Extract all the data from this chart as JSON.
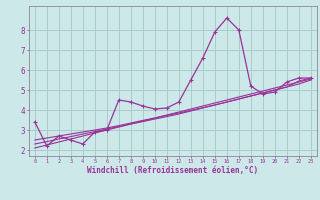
{
  "title": "",
  "xlabel": "Windchill (Refroidissement éolien,°C)",
  "bg_color": "#cce8e8",
  "grid_color": "#aacccc",
  "line_color": "#993399",
  "x_data": [
    0,
    1,
    2,
    3,
    4,
    5,
    6,
    7,
    8,
    9,
    10,
    11,
    12,
    13,
    14,
    15,
    16,
    17,
    18,
    19,
    20,
    21,
    22,
    23
  ],
  "main_y": [
    3.4,
    2.2,
    2.7,
    2.5,
    2.3,
    2.9,
    3.0,
    4.5,
    4.4,
    4.2,
    4.05,
    4.1,
    4.4,
    5.5,
    6.6,
    7.9,
    8.6,
    8.0,
    5.2,
    4.8,
    4.9,
    5.4,
    5.6,
    5.6
  ],
  "line1_y": [
    2.1,
    2.25,
    2.4,
    2.55,
    2.7,
    2.85,
    3.0,
    3.15,
    3.3,
    3.45,
    3.6,
    3.75,
    3.9,
    4.05,
    4.2,
    4.35,
    4.5,
    4.65,
    4.8,
    4.95,
    5.1,
    5.25,
    5.4,
    5.55
  ],
  "line2_y": [
    2.3,
    2.42,
    2.55,
    2.67,
    2.8,
    2.92,
    3.05,
    3.17,
    3.3,
    3.42,
    3.55,
    3.67,
    3.8,
    3.95,
    4.1,
    4.25,
    4.4,
    4.55,
    4.7,
    4.85,
    5.0,
    5.15,
    5.3,
    5.5
  ],
  "line3_y": [
    2.5,
    2.6,
    2.7,
    2.8,
    2.9,
    3.0,
    3.1,
    3.22,
    3.35,
    3.48,
    3.6,
    3.73,
    3.85,
    3.98,
    4.12,
    4.25,
    4.4,
    4.55,
    4.7,
    4.85,
    5.0,
    5.15,
    5.45,
    5.6
  ],
  "yticks": [
    2,
    3,
    4,
    5,
    6,
    7,
    8
  ],
  "ylim": [
    1.7,
    9.2
  ],
  "xlim": [
    -0.5,
    23.5
  ]
}
